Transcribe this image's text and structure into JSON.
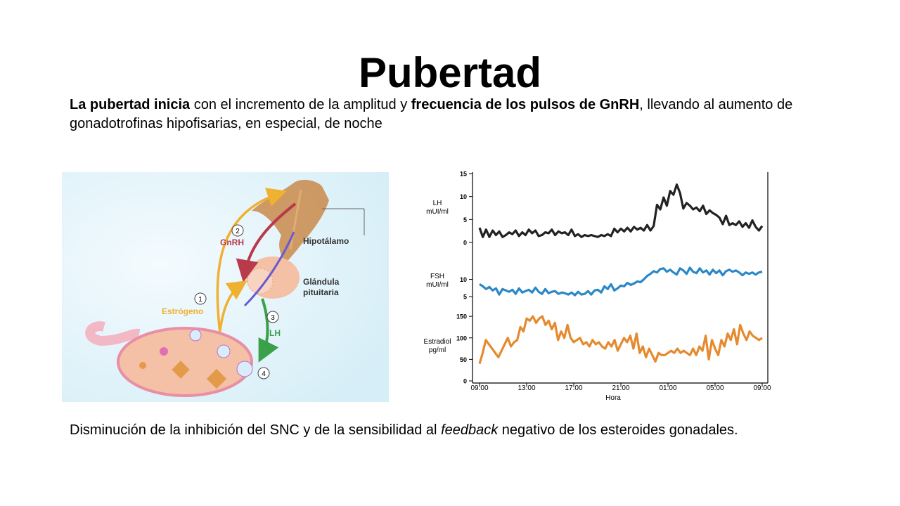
{
  "slide": {
    "title": "Pubertad",
    "intro": {
      "part1_bold": "La pubertad inicia",
      "part2": " con el incremento de la amplitud y ",
      "part3_bold": "frecuencia de los pulsos de GnRH",
      "part4": ", llevando al aumento de gonadotrofinas hipofisarias, en especial, de noche"
    },
    "footer": {
      "part1": "Disminución de la inhibición del SNC y de la sensibilidad al ",
      "part2_italic": "feedback",
      "part3": " negativo de los esteroides gonadales."
    }
  },
  "diagram": {
    "labels": {
      "hipotalamo": "Hipotálamo",
      "glandula_1": "Glándula",
      "glandula_2": "pituitaria",
      "gnrh": "GnRH",
      "lh": "LH",
      "estrogeno": "Estrógeno"
    },
    "steps": [
      "1",
      "2",
      "3",
      "4"
    ],
    "colors": {
      "gnrh": "#b83a4b",
      "lh": "#3aa04a",
      "estrogeno": "#f0b030",
      "ovary": "#f4c0a6"
    }
  },
  "chart_data": {
    "type": "line",
    "x_ticks": [
      "09:00",
      "13:00",
      "17:00",
      "21:00",
      "01:00",
      "05:00",
      "09:00"
    ],
    "xlabel": "Hora",
    "panels": [
      {
        "ylabel": [
          "LH",
          "mUI/ml"
        ],
        "yticks": [
          0,
          5,
          10,
          15
        ],
        "ylim": [
          0,
          15
        ],
        "color": "#222222",
        "values": [
          3.2,
          1.2,
          2.8,
          1.2,
          2.6,
          1.6,
          2.4,
          1.2,
          1.6,
          2.2,
          1.8,
          2.6,
          1.4,
          2.2,
          1.6,
          2.8,
          2.0,
          2.6,
          1.4,
          1.6,
          2.2,
          2.0,
          2.8,
          1.6,
          2.4,
          2.0,
          2.2,
          1.6,
          2.8,
          1.4,
          1.8,
          1.2,
          1.6,
          1.4,
          1.6,
          1.4,
          1.2,
          1.6,
          1.4,
          1.8,
          1.4,
          3.0,
          2.2,
          3.0,
          2.4,
          3.2,
          2.4,
          3.4,
          2.8,
          3.2,
          2.6,
          3.8,
          2.6,
          3.6,
          8.2,
          7.2,
          9.8,
          8.0,
          11.2,
          10.4,
          12.6,
          10.8,
          7.4,
          8.6,
          8.0,
          7.2,
          7.6,
          6.8,
          8.0,
          6.2,
          7.0,
          6.4,
          6.0,
          5.4,
          4.0,
          5.8,
          3.8,
          4.2,
          3.8,
          4.6,
          3.4,
          4.2,
          3.2,
          4.8,
          3.4,
          2.6,
          3.6
        ],
        "x_start_hour": 9,
        "x_end_hour": 33
      },
      {
        "ylabel": [
          "FSH",
          "mUI/ml"
        ],
        "yticks": [
          5,
          10
        ],
        "ylim": [
          4,
          15
        ],
        "color": "#2a87c8",
        "values": [
          8.6,
          8.0,
          7.2,
          7.8,
          6.8,
          7.4,
          5.6,
          7.2,
          6.8,
          6.4,
          7.0,
          5.8,
          7.4,
          6.2,
          6.6,
          7.0,
          6.2,
          7.6,
          6.4,
          5.8,
          7.2,
          6.0,
          6.4,
          6.6,
          5.8,
          6.2,
          6.0,
          5.6,
          6.2,
          5.4,
          6.4,
          5.6,
          5.8,
          6.6,
          5.6,
          6.8,
          7.0,
          6.2,
          8.0,
          7.2,
          8.6,
          6.8,
          7.4,
          8.2,
          8.0,
          9.0,
          8.4,
          8.8,
          9.4,
          9.2,
          10.0,
          11.0,
          11.6,
          12.4,
          12.0,
          13.0,
          13.2,
          12.2,
          12.8,
          12.0,
          11.4,
          13.2,
          12.6,
          11.6,
          13.4,
          12.2,
          11.8,
          13.2,
          12.0,
          12.6,
          11.4,
          12.8,
          11.8,
          12.6,
          11.2,
          12.4,
          12.8,
          12.2,
          12.6,
          12.0,
          11.2,
          12.0,
          11.6,
          12.0,
          11.4,
          12.0,
          12.2
        ],
        "x_start_hour": 9,
        "x_end_hour": 33
      },
      {
        "ylabel": [
          "Estradiol",
          "pg/ml"
        ],
        "yticks": [
          0,
          50,
          100,
          150
        ],
        "ylim": [
          0,
          160
        ],
        "color": "#e58a2e",
        "values": [
          40,
          65,
          95,
          85,
          75,
          65,
          55,
          70,
          85,
          100,
          80,
          90,
          95,
          125,
          115,
          145,
          140,
          150,
          135,
          145,
          150,
          130,
          140,
          120,
          135,
          95,
          115,
          100,
          130,
          100,
          90,
          95,
          100,
          85,
          90,
          80,
          95,
          85,
          90,
          80,
          75,
          90,
          80,
          95,
          70,
          85,
          100,
          90,
          105,
          75,
          110,
          65,
          80,
          55,
          75,
          60,
          45,
          65,
          60,
          60,
          65,
          70,
          65,
          75,
          65,
          70,
          65,
          60,
          75,
          60,
          80,
          70,
          105,
          50,
          95,
          75,
          60,
          95,
          80,
          110,
          95,
          120,
          85,
          130,
          110,
          95,
          115,
          105,
          100,
          95,
          100
        ],
        "x_start_hour": 9,
        "x_end_hour": 33
      }
    ]
  }
}
